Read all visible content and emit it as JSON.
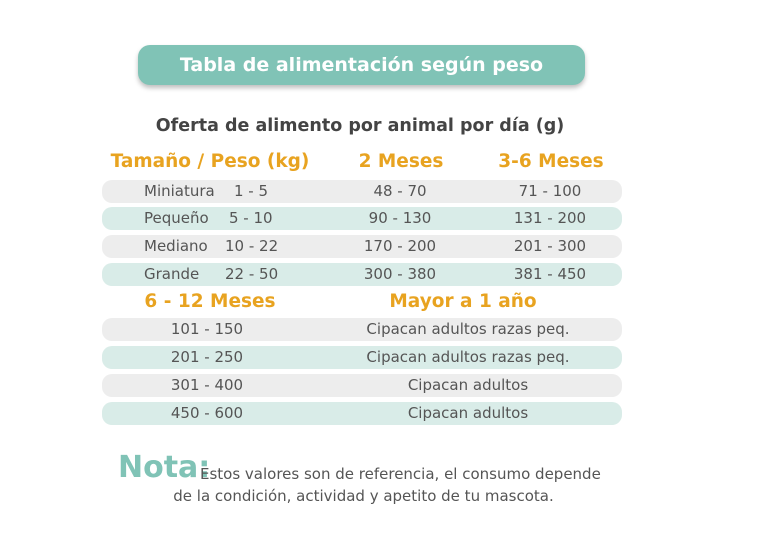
{
  "title": "Tabla de alimentación según peso",
  "subtitle": "Oferta de alimento por animal por día (g)",
  "colors": {
    "banner": "#80c3b6",
    "header": "#e8a320",
    "row_gray": "#ededed",
    "row_teal": "#d9ece8"
  },
  "table1": {
    "headers": [
      "Tamaño / Peso (kg)",
      "2 Meses",
      "3-6 Meses"
    ],
    "rows": [
      {
        "size": "Miniatura",
        "weight": "1 - 5",
        "m2": "48 - 70",
        "m3_6": "71 - 100"
      },
      {
        "size": "Pequeño",
        "weight": "5 - 10",
        "m2": "90 - 130",
        "m3_6": "131 - 200"
      },
      {
        "size": "Mediano",
        "weight": "10 - 22",
        "m2": "170 - 200",
        "m3_6": "201 - 300"
      },
      {
        "size": "Grande",
        "weight": "22 - 50",
        "m2": "300 - 380",
        "m3_6": "381 - 450"
      }
    ]
  },
  "table2": {
    "headers": [
      "6 - 12 Meses",
      "Mayor a 1 año"
    ],
    "rows": [
      {
        "m6_12": "101 - 150",
        "adult": "Cipacan adultos razas peq."
      },
      {
        "m6_12": "201 - 250",
        "adult": "Cipacan adultos razas peq."
      },
      {
        "m6_12": "301 - 400",
        "adult": "Cipacan adultos"
      },
      {
        "m6_12": "450 - 600",
        "adult": "Cipacan adultos"
      }
    ]
  },
  "note": {
    "label": "Nota:",
    "line1": "Estos valores son de referencia, el consumo depende",
    "line2": "de la condición, actividad y apetito de tu mascota."
  }
}
